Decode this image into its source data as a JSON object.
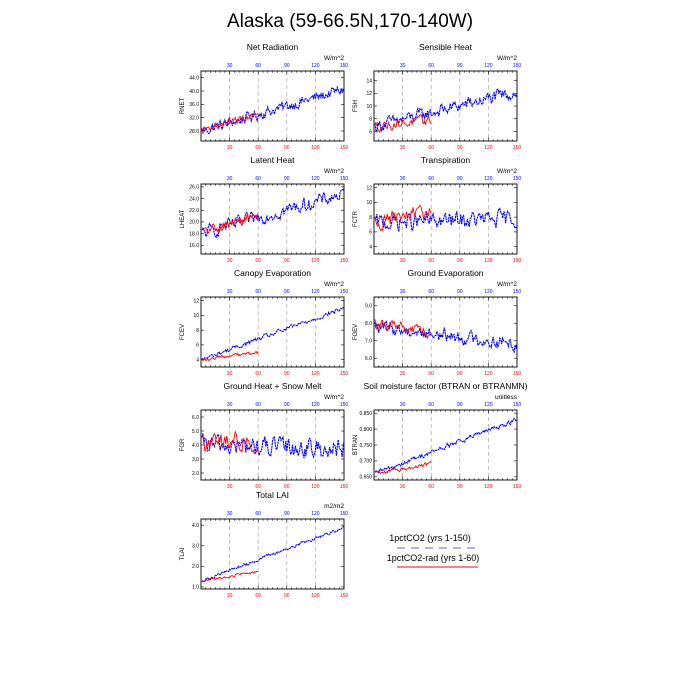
{
  "figure": {
    "title": "Alaska (59-66.5N,170-140W)",
    "series_colors": {
      "1pctCO2 (yrs 1-150)": "#0000ff",
      "1pctCO2-rad (yrs 1-60)": "#ff0000"
    },
    "top_axis_color": "#0000ff",
    "bottom_axis_color": "#ff0000"
  },
  "legend": {
    "items": [
      {
        "label": "1pctCO2 (yrs 1-150)",
        "color": "#9999cc",
        "style": "dashed"
      },
      {
        "label": "1pctCO2-rad (yrs 1-60)",
        "color": "#ff0000",
        "style": "solid"
      }
    ]
  },
  "chart_data": [
    {
      "type": "line",
      "title": "Net Radiation",
      "ylabel": "RNET",
      "units": "W/m^2",
      "ylim": [
        25,
        46
      ],
      "yticks": [
        28.0,
        32.0,
        36.0,
        40.0,
        44.0
      ],
      "decimals": 1,
      "top_xticks": [
        30,
        60,
        90,
        120,
        150
      ],
      "bottom_xticks": [
        30,
        60,
        90,
        120,
        150
      ],
      "series": [
        {
          "label": "1pctCO2 (yrs 1-150)",
          "years": [
            1,
            150
          ],
          "start": 28.0,
          "end": 40.5,
          "amp": 2.6
        },
        {
          "label": "1pctCO2-rad (yrs 1-60)",
          "years": [
            1,
            60
          ],
          "start": 28.5,
          "end": 33.0,
          "amp": 1.6
        }
      ]
    },
    {
      "type": "line",
      "title": "Sensible Heat",
      "ylabel": "FSH",
      "units": "W/m^2",
      "ylim": [
        4.5,
        15.5
      ],
      "yticks": [
        6,
        8,
        10,
        12,
        14
      ],
      "decimals": 0,
      "top_xticks": [
        30,
        60,
        90,
        120,
        150
      ],
      "bottom_xticks": [
        30,
        60,
        90,
        120,
        150
      ],
      "series": [
        {
          "label": "1pctCO2 (yrs 1-150)",
          "years": [
            1,
            150
          ],
          "start": 6.8,
          "end": 12.2,
          "amp": 1.6
        },
        {
          "label": "1pctCO2-rad (yrs 1-60)",
          "years": [
            1,
            60
          ],
          "start": 6.8,
          "end": 7.8,
          "amp": 1.2
        }
      ]
    },
    {
      "type": "line",
      "title": "Latent Heat",
      "ylabel": "LHEAT",
      "units": "W/m^2",
      "ylim": [
        14.5,
        26.5
      ],
      "yticks": [
        16.0,
        18.0,
        20.0,
        22.0,
        24.0,
        26.0
      ],
      "decimals": 1,
      "top_xticks": [
        30,
        60,
        90,
        120,
        150
      ],
      "bottom_xticks": [
        30,
        60,
        90,
        120,
        150
      ],
      "series": [
        {
          "label": "1pctCO2 (yrs 1-150)",
          "years": [
            1,
            150
          ],
          "start": 18.0,
          "end": 24.8,
          "amp": 1.8
        },
        {
          "label": "1pctCO2-rad (yrs 1-60)",
          "years": [
            1,
            60
          ],
          "start": 18.2,
          "end": 21.0,
          "amp": 1.4
        }
      ]
    },
    {
      "type": "line",
      "title": "Transpiration",
      "ylabel": "FCTR",
      "units": "W/m^2",
      "ylim": [
        3,
        12.5
      ],
      "yticks": [
        4,
        6,
        8,
        10,
        12
      ],
      "decimals": 0,
      "top_xticks": [
        30,
        60,
        90,
        120,
        150
      ],
      "bottom_xticks": [
        30,
        60,
        90,
        120,
        150
      ],
      "series": [
        {
          "label": "1pctCO2 (yrs 1-150)",
          "years": [
            1,
            150
          ],
          "start": 7.2,
          "end": 7.8,
          "amp": 1.8
        },
        {
          "label": "1pctCO2-rad (yrs 1-60)",
          "years": [
            1,
            60
          ],
          "start": 7.3,
          "end": 8.8,
          "amp": 1.6
        }
      ]
    },
    {
      "type": "line",
      "title": "Canopy Evaporation",
      "ylabel": "FCEV",
      "units": "W/m^2",
      "ylim": [
        3,
        12.5
      ],
      "yticks": [
        4,
        6,
        8,
        10,
        12
      ],
      "decimals": 0,
      "top_xticks": [
        30,
        60,
        90,
        120,
        150
      ],
      "bottom_xticks": [
        30,
        60,
        90,
        120,
        150
      ],
      "series": [
        {
          "label": "1pctCO2 (yrs 1-150)",
          "years": [
            1,
            150
          ],
          "start": 4.0,
          "end": 11.0,
          "amp": 0.5
        },
        {
          "label": "1pctCO2-rad (yrs 1-60)",
          "years": [
            1,
            60
          ],
          "start": 3.9,
          "end": 5.0,
          "amp": 0.4
        }
      ]
    },
    {
      "type": "line",
      "title": "Ground Evaporation",
      "ylabel": "FGEV",
      "units": "W/m^2",
      "ylim": [
        5.5,
        9.5
      ],
      "yticks": [
        6.0,
        7.0,
        8.0,
        9.0
      ],
      "decimals": 1,
      "top_xticks": [
        30,
        60,
        90,
        120,
        150
      ],
      "bottom_xticks": [
        30,
        60,
        90,
        120,
        150
      ],
      "series": [
        {
          "label": "1pctCO2 (yrs 1-150)",
          "years": [
            1,
            150
          ],
          "start": 7.8,
          "end": 6.8,
          "amp": 0.6
        },
        {
          "label": "1pctCO2-rad (yrs 1-60)",
          "years": [
            1,
            60
          ],
          "start": 8.0,
          "end": 7.4,
          "amp": 0.5
        }
      ]
    },
    {
      "type": "line",
      "title": "Ground Heat + Snow Melt",
      "ylabel": "FGR",
      "units": "W/m^2",
      "ylim": [
        1.5,
        6.5
      ],
      "yticks": [
        2.0,
        3.0,
        4.0,
        5.0,
        6.0
      ],
      "decimals": 1,
      "top_xticks": [
        30,
        60,
        90,
        120,
        150
      ],
      "bottom_xticks": [
        30,
        60,
        90,
        120,
        150
      ],
      "series": [
        {
          "label": "1pctCO2 (yrs 1-150)",
          "years": [
            1,
            150
          ],
          "start": 4.0,
          "end": 3.7,
          "amp": 1.1
        },
        {
          "label": "1pctCO2-rad (yrs 1-60)",
          "years": [
            1,
            60
          ],
          "start": 4.0,
          "end": 4.3,
          "amp": 1.1
        }
      ]
    },
    {
      "type": "line",
      "title": "Soil moisture factor (BTRAN or BTRANMN)",
      "ylabel": "BTRAN",
      "units": "unitless",
      "ylim": [
        0.64,
        0.86
      ],
      "yticks": [
        0.65,
        0.7,
        0.75,
        0.8,
        0.85
      ],
      "decimals": 3,
      "top_xticks": [
        30,
        60,
        90,
        120,
        150
      ],
      "bottom_xticks": [
        30,
        60,
        90,
        120,
        150
      ],
      "series": [
        {
          "label": "1pctCO2 (yrs 1-150)",
          "years": [
            1,
            150
          ],
          "start": 0.66,
          "end": 0.83,
          "amp": 0.012
        },
        {
          "label": "1pctCO2-rad (yrs 1-60)",
          "years": [
            1,
            60
          ],
          "start": 0.66,
          "end": 0.69,
          "amp": 0.01
        }
      ]
    },
    {
      "type": "line",
      "title": "Total LAI",
      "ylabel": "TLAI",
      "units": "m2/m2",
      "ylim": [
        0.9,
        4.3
      ],
      "yticks": [
        1.0,
        2.0,
        3.0,
        4.0
      ],
      "decimals": 1,
      "top_xticks": [
        30,
        60,
        90,
        120,
        150
      ],
      "bottom_xticks": [
        30,
        60,
        90,
        120,
        150
      ],
      "series": [
        {
          "label": "1pctCO2 (yrs 1-150)",
          "years": [
            1,
            150
          ],
          "start": 1.3,
          "end": 3.9,
          "amp": 0.12
        },
        {
          "label": "1pctCO2-rad (yrs 1-60)",
          "years": [
            1,
            60
          ],
          "start": 1.3,
          "end": 1.75,
          "amp": 0.1
        }
      ]
    }
  ]
}
